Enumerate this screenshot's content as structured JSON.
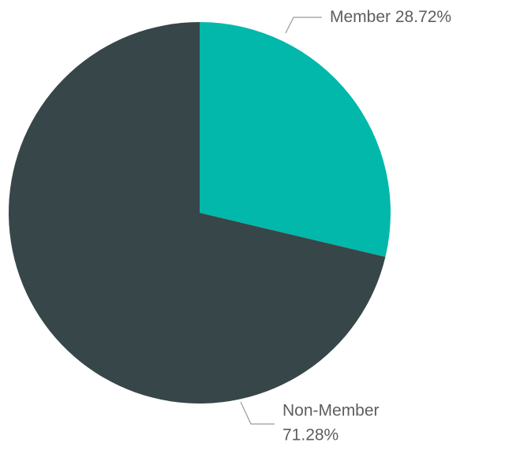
{
  "chart_data": {
    "type": "pie",
    "categories": [
      "Member",
      "Non-Member"
    ],
    "values": [
      28.72,
      71.28
    ],
    "value_labels": [
      "28.72%",
      "71.28%"
    ],
    "colors": [
      "#01b8aa",
      "#374649"
    ]
  }
}
